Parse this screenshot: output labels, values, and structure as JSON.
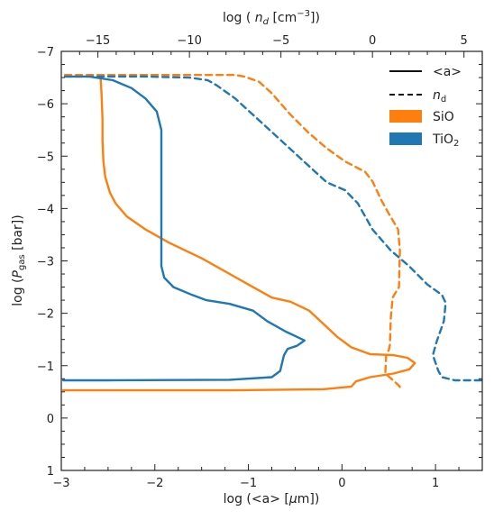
{
  "chart_data": {
    "type": "line",
    "xlabel_bottom": "log (<a> [μm])",
    "xlabel_top": "log ( n_d [cm⁻³])",
    "ylabel": "log (P_gas [bar])",
    "xlim_bottom": [
      -3,
      1.5
    ],
    "xlim_top": [
      -17,
      6
    ],
    "ylim": [
      -7,
      1
    ],
    "y_inverted": true,
    "x_ticks_bottom": [
      -3,
      -2,
      -1,
      0,
      1
    ],
    "x_tick_labels_bottom": [
      "−3",
      "−2",
      "−1",
      "0",
      "1"
    ],
    "x_ticks_top": [
      -15,
      -10,
      -5,
      0,
      5
    ],
    "x_tick_labels_top": [
      "−15",
      "−10",
      "−5",
      "0",
      "5"
    ],
    "y_ticks": [
      -7,
      -6,
      -5,
      -4,
      -3,
      -2,
      -1,
      0,
      1
    ],
    "y_tick_labels": [
      "−7",
      "−6",
      "−5",
      "−4",
      "−3",
      "−2",
      "−1",
      "0",
      "1"
    ],
    "grid": false,
    "legend": {
      "position": "top-right",
      "entries": [
        {
          "label": "<a>",
          "style": "solid"
        },
        {
          "label": "n_d",
          "style": "dashed"
        },
        {
          "label": "SiO",
          "style": "patch",
          "color": "#ff7f0e"
        },
        {
          "label": "TiO₂",
          "style": "patch",
          "color": "#1f77b4"
        }
      ]
    },
    "series": [
      {
        "name": "SiO <a>",
        "species": "SiO",
        "quantity": "<a>",
        "axis": "bottom",
        "style": "solid",
        "color": "#ff7f0e",
        "points": [
          [
            -2.58,
            -6.5
          ],
          [
            -2.57,
            -6.2
          ],
          [
            -2.56,
            -5.7
          ],
          [
            -2.56,
            -5.3
          ],
          [
            -2.55,
            -4.9
          ],
          [
            -2.53,
            -4.6
          ],
          [
            -2.48,
            -4.3
          ],
          [
            -2.42,
            -4.1
          ],
          [
            -2.3,
            -3.85
          ],
          [
            -2.1,
            -3.6
          ],
          [
            -1.85,
            -3.35
          ],
          [
            -1.5,
            -3.05
          ],
          [
            -1.2,
            -2.75
          ],
          [
            -0.95,
            -2.5
          ],
          [
            -0.75,
            -2.3
          ],
          [
            -0.55,
            -2.22
          ],
          [
            -0.35,
            -2.05
          ],
          [
            -0.2,
            -1.8
          ],
          [
            -0.05,
            -1.55
          ],
          [
            0.1,
            -1.35
          ],
          [
            0.3,
            -1.22
          ],
          [
            0.55,
            -1.2
          ],
          [
            0.7,
            -1.15
          ],
          [
            0.78,
            -1.05
          ],
          [
            0.72,
            -0.93
          ],
          [
            0.55,
            -0.85
          ],
          [
            0.3,
            -0.78
          ],
          [
            0.15,
            -0.7
          ],
          [
            0.1,
            -0.6
          ],
          [
            -0.2,
            -0.55
          ],
          [
            -1.2,
            -0.53
          ],
          [
            -2.7,
            -0.53
          ],
          [
            -2.98,
            -0.53
          ]
        ]
      },
      {
        "name": "TiO₂ <a>",
        "species": "TiO₂",
        "quantity": "<a>",
        "axis": "bottom",
        "style": "solid",
        "color": "#1f77b4",
        "points": [
          [
            -2.95,
            -6.52
          ],
          [
            -2.7,
            -6.52
          ],
          [
            -2.45,
            -6.45
          ],
          [
            -2.25,
            -6.3
          ],
          [
            -2.1,
            -6.1
          ],
          [
            -1.98,
            -5.85
          ],
          [
            -1.93,
            -5.5
          ],
          [
            -1.93,
            -4.5
          ],
          [
            -1.93,
            -3.5
          ],
          [
            -1.93,
            -2.9
          ],
          [
            -1.9,
            -2.68
          ],
          [
            -1.8,
            -2.5
          ],
          [
            -1.6,
            -2.35
          ],
          [
            -1.45,
            -2.25
          ],
          [
            -1.2,
            -2.18
          ],
          [
            -0.95,
            -2.05
          ],
          [
            -0.8,
            -1.85
          ],
          [
            -0.6,
            -1.65
          ],
          [
            -0.48,
            -1.55
          ],
          [
            -0.4,
            -1.48
          ],
          [
            -0.48,
            -1.38
          ],
          [
            -0.58,
            -1.32
          ],
          [
            -0.62,
            -1.2
          ],
          [
            -0.64,
            -1.05
          ],
          [
            -0.66,
            -0.9
          ],
          [
            -0.75,
            -0.78
          ],
          [
            -1.2,
            -0.73
          ],
          [
            -2.5,
            -0.72
          ],
          [
            -2.98,
            -0.72
          ]
        ]
      },
      {
        "name": "SiO n_d",
        "species": "SiO",
        "quantity": "n_d",
        "axis": "top",
        "style": "dashed",
        "color": "#ff7f0e",
        "points": [
          [
            -16.8,
            -6.55
          ],
          [
            -12,
            -6.55
          ],
          [
            -7.5,
            -6.55
          ],
          [
            -7,
            -6.52
          ],
          [
            -6.2,
            -6.42
          ],
          [
            -5.5,
            -6.2
          ],
          [
            -4.5,
            -5.8
          ],
          [
            -3.5,
            -5.45
          ],
          [
            -2.5,
            -5.15
          ],
          [
            -1.5,
            -4.9
          ],
          [
            -0.4,
            -4.7
          ],
          [
            0,
            -4.52
          ],
          [
            0.5,
            -4.15
          ],
          [
            0.9,
            -3.9
          ],
          [
            1.4,
            -3.6
          ],
          [
            1.5,
            -3.2
          ],
          [
            1.45,
            -2.5
          ],
          [
            1.1,
            -2.3
          ],
          [
            1.0,
            -1.9
          ],
          [
            0.95,
            -1.4
          ],
          [
            0.9,
            -1.3
          ],
          [
            0.75,
            -1.2
          ],
          [
            0.7,
            -0.85
          ],
          [
            1.2,
            -0.7
          ],
          [
            1.5,
            -0.6
          ],
          [
            1.4,
            -0.53
          ]
        ]
      },
      {
        "name": "TiO₂ n_d",
        "species": "TiO₂",
        "quantity": "n_d",
        "axis": "top",
        "style": "dashed",
        "color": "#1f77b4",
        "points": [
          [
            -16.8,
            -6.52
          ],
          [
            -12.5,
            -6.52
          ],
          [
            -10,
            -6.5
          ],
          [
            -9,
            -6.45
          ],
          [
            -8.5,
            -6.35
          ],
          [
            -7.5,
            -6.1
          ],
          [
            -5,
            -5.3
          ],
          [
            -2.5,
            -4.5
          ],
          [
            -1.5,
            -4.35
          ],
          [
            -0.8,
            -4.1
          ],
          [
            0,
            -3.6
          ],
          [
            1,
            -3.2
          ],
          [
            2,
            -2.9
          ],
          [
            3,
            -2.55
          ],
          [
            3.8,
            -2.35
          ],
          [
            4.0,
            -2.2
          ],
          [
            3.9,
            -1.85
          ],
          [
            3.5,
            -1.45
          ],
          [
            3.3,
            -1.2
          ],
          [
            3.6,
            -0.9
          ],
          [
            3.8,
            -0.78
          ],
          [
            4.5,
            -0.72
          ],
          [
            5.0,
            -0.72
          ],
          [
            6.0,
            -0.72
          ]
        ]
      }
    ]
  }
}
